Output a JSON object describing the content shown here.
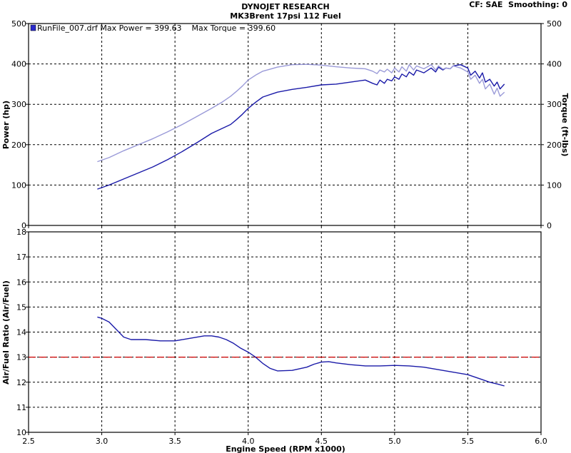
{
  "header": {
    "title": "DYNOJET RESEARCH",
    "subtitle": "MK3Brent 17psi 112 Fuel",
    "settings": "CF: SAE  Smoothing: 0"
  },
  "legend": {
    "text": "RunFile_007.drf Max Power = 399.63    Max Torque = 399.60"
  },
  "chart_data": [
    {
      "type": "line",
      "xlabel": "Engine Speed (RPM x1000)",
      "ylabel": "Power (hp)",
      "y2label": "Torque (ft-lbs)",
      "xlim": [
        2.5,
        6.0
      ],
      "ylim": [
        0,
        500
      ],
      "y2lim": [
        0,
        500
      ],
      "grid": true,
      "legend_position": "top-left",
      "x_ticks": [
        "2.5",
        "3.0",
        "3.5",
        "4.0",
        "4.5",
        "5.0",
        "5.5",
        "6.0"
      ],
      "y_ticks": [
        "0",
        "100",
        "200",
        "300",
        "400",
        "500"
      ],
      "y2_ticks": [
        "0",
        "100",
        "200",
        "300",
        "400",
        "500"
      ],
      "series": [
        {
          "color": "#1a1aa8",
          "axis": "left",
          "x": [
            2.97,
            3.05,
            3.15,
            3.25,
            3.35,
            3.45,
            3.55,
            3.65,
            3.75,
            3.82,
            3.88,
            3.92,
            3.96,
            4.0,
            4.05,
            4.1,
            4.2,
            4.3,
            4.4,
            4.5,
            4.6,
            4.7,
            4.8,
            4.85,
            4.88,
            4.9,
            4.93,
            4.95,
            4.98,
            5.0,
            5.03,
            5.05,
            5.08,
            5.1,
            5.13,
            5.15,
            5.2,
            5.25,
            5.28,
            5.3,
            5.33,
            5.35,
            5.38,
            5.4,
            5.45,
            5.5,
            5.52,
            5.55,
            5.58,
            5.6,
            5.62,
            5.65,
            5.68,
            5.7,
            5.72,
            5.75
          ],
          "values": [
            90,
            100,
            115,
            130,
            145,
            163,
            183,
            205,
            228,
            240,
            250,
            262,
            275,
            290,
            305,
            318,
            330,
            337,
            342,
            348,
            350,
            355,
            360,
            352,
            348,
            360,
            352,
            362,
            358,
            368,
            362,
            375,
            368,
            380,
            372,
            385,
            378,
            390,
            380,
            392,
            385,
            390,
            388,
            395,
            398,
            390,
            372,
            382,
            365,
            378,
            355,
            362,
            345,
            355,
            338,
            350
          ]
        },
        {
          "color": "#9a9ad8",
          "axis": "right",
          "x": [
            2.97,
            3.05,
            3.15,
            3.25,
            3.35,
            3.45,
            3.55,
            3.65,
            3.75,
            3.82,
            3.88,
            3.92,
            3.96,
            4.0,
            4.05,
            4.1,
            4.2,
            4.3,
            4.4,
            4.5,
            4.6,
            4.7,
            4.8,
            4.85,
            4.88,
            4.9,
            4.93,
            4.95,
            4.98,
            5.0,
            5.03,
            5.05,
            5.08,
            5.1,
            5.13,
            5.15,
            5.2,
            5.25,
            5.28,
            5.3,
            5.33,
            5.35,
            5.38,
            5.4,
            5.45,
            5.5,
            5.52,
            5.55,
            5.58,
            5.6,
            5.62,
            5.65,
            5.68,
            5.7,
            5.72,
            5.75
          ],
          "values": [
            158,
            168,
            185,
            200,
            215,
            232,
            250,
            270,
            290,
            305,
            320,
            332,
            345,
            360,
            372,
            382,
            392,
            398,
            399,
            397,
            393,
            390,
            388,
            382,
            376,
            385,
            380,
            387,
            378,
            390,
            380,
            393,
            382,
            398,
            385,
            395,
            388,
            398,
            385,
            395,
            387,
            390,
            388,
            395,
            390,
            380,
            362,
            372,
            352,
            362,
            338,
            350,
            325,
            340,
            320,
            330
          ]
        }
      ]
    },
    {
      "type": "line",
      "xlabel": "Engine Speed (RPM x1000)",
      "ylabel": "Air/Fuel Ratio (Air/Fuel)",
      "xlim": [
        2.5,
        6.0
      ],
      "ylim": [
        10,
        18
      ],
      "grid": true,
      "x_ticks": [
        "2.5",
        "3.0",
        "3.5",
        "4.0",
        "4.5",
        "5.0",
        "5.5",
        "6.0"
      ],
      "y_ticks": [
        "10",
        "11",
        "12",
        "13",
        "14",
        "15",
        "16",
        "17",
        "18"
      ],
      "reference_line": {
        "y": 13.0,
        "color": "#cc0000",
        "style": "dashed"
      },
      "series": [
        {
          "color": "#1a1aa8",
          "x": [
            2.97,
            3.0,
            3.05,
            3.1,
            3.15,
            3.2,
            3.3,
            3.4,
            3.5,
            3.6,
            3.7,
            3.75,
            3.8,
            3.85,
            3.9,
            3.95,
            4.0,
            4.05,
            4.1,
            4.15,
            4.2,
            4.3,
            4.4,
            4.45,
            4.5,
            4.55,
            4.6,
            4.7,
            4.8,
            4.9,
            5.0,
            5.1,
            5.2,
            5.3,
            5.4,
            5.5,
            5.55,
            5.6,
            5.65,
            5.7,
            5.75
          ],
          "values": [
            14.6,
            14.55,
            14.4,
            14.1,
            13.8,
            13.7,
            13.7,
            13.65,
            13.65,
            13.75,
            13.85,
            13.85,
            13.8,
            13.7,
            13.55,
            13.35,
            13.2,
            13.0,
            12.75,
            12.55,
            12.45,
            12.47,
            12.6,
            12.72,
            12.8,
            12.82,
            12.77,
            12.7,
            12.65,
            12.65,
            12.67,
            12.65,
            12.6,
            12.5,
            12.4,
            12.3,
            12.2,
            12.1,
            12.0,
            11.93,
            11.85
          ]
        }
      ]
    }
  ]
}
